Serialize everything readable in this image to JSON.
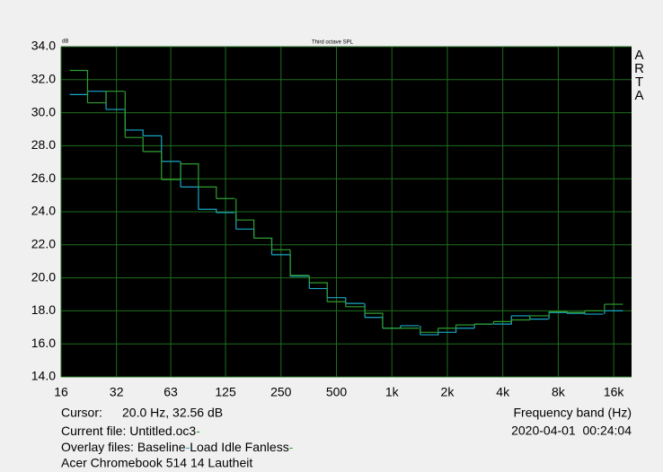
{
  "chart_data": {
    "type": "step",
    "title": "Third octave SPL",
    "y_unit_label": "dB",
    "x_label": "Frequency band (Hz)",
    "watermark": "ARTA",
    "x": [
      20,
      25,
      31.5,
      40,
      50,
      63,
      80,
      100,
      125,
      160,
      200,
      250,
      315,
      400,
      500,
      630,
      800,
      1000,
      1250,
      1600,
      2000,
      2500,
      3150,
      4000,
      5000,
      6300,
      8000,
      10000,
      12500,
      16000
    ],
    "xscale": "log",
    "xlim": [
      16,
      20000
    ],
    "xticks": [
      16,
      32,
      63,
      125,
      250,
      500,
      {
        "value": 1000,
        "label": "1k"
      },
      {
        "value": 2000,
        "label": "2k"
      },
      {
        "value": 4000,
        "label": "4k"
      },
      {
        "value": 8000,
        "label": "8k"
      },
      {
        "value": 16000,
        "label": "16k"
      }
    ],
    "ylim": [
      14,
      34
    ],
    "yticks": [
      {
        "value": 14,
        "label": "14.0"
      },
      {
        "value": 16,
        "label": "16.0"
      },
      {
        "value": 18,
        "label": "18.0"
      },
      {
        "value": 20,
        "label": "20.0"
      },
      {
        "value": 22,
        "label": "22.0"
      },
      {
        "value": 24,
        "label": "24.0"
      },
      {
        "value": 26,
        "label": "26.0"
      },
      {
        "value": 28,
        "label": "28.0"
      },
      {
        "value": 30,
        "label": "30.0"
      },
      {
        "value": 32,
        "label": "32.0"
      },
      {
        "value": 34,
        "label": "34.0"
      }
    ],
    "grid": true,
    "series": [
      {
        "name": "Baseline",
        "color": "#1aa7c8",
        "values": [
          31.1,
          31.3,
          30.2,
          28.95,
          28.6,
          27.05,
          25.5,
          24.15,
          23.95,
          22.95,
          22.4,
          21.4,
          20.1,
          19.35,
          18.8,
          18.45,
          17.6,
          16.95,
          17.1,
          16.55,
          16.7,
          16.95,
          17.2,
          17.2,
          17.7,
          17.5,
          17.9,
          17.85,
          17.8,
          18.0
        ]
      },
      {
        "name": "Load Idle Fanless",
        "color": "#2f9e2f",
        "values": [
          32.56,
          30.6,
          31.3,
          28.5,
          27.65,
          25.95,
          26.9,
          25.5,
          24.8,
          23.5,
          22.4,
          21.7,
          20.15,
          19.7,
          18.55,
          18.25,
          17.85,
          16.95,
          16.95,
          16.7,
          16.95,
          17.15,
          17.2,
          17.35,
          17.45,
          17.7,
          17.95,
          17.9,
          18.0,
          18.4
        ]
      }
    ]
  },
  "footer": {
    "cursor_label": "Cursor:",
    "cursor_value": "20.0 Hz, 32.56 dB",
    "current_file_label": "Current file:",
    "current_file": "Untitled.oc3",
    "timestamp": "2020-04-01  00:24:04",
    "overlay_label": "Overlay files:",
    "description": "Acer Chromebook 514 14 Lautheit"
  }
}
